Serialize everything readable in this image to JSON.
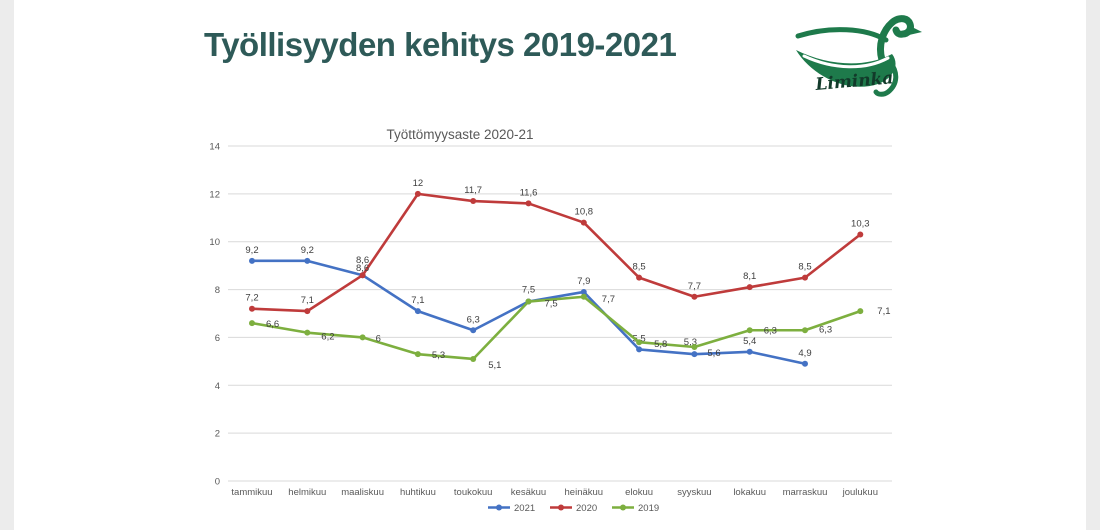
{
  "slide": {
    "title": "Työllisyyden kehitys 2019-2021",
    "title_color": "#2e5a58",
    "logo": {
      "text": "Liminka",
      "green": "#1e7a4b",
      "text_color": "#123a2a"
    }
  },
  "chart_data": {
    "type": "line",
    "title": "Työttömyysaste 2020-21",
    "categories": [
      "tammikuu",
      "helmikuu",
      "maaliskuu",
      "huhtikuu",
      "toukokuu",
      "kesäkuu",
      "heinäkuu",
      "elokuu",
      "syyskuu",
      "lokakuu",
      "marraskuu",
      "joulukuu"
    ],
    "series": [
      {
        "name": "2021",
        "color": "#4472c4",
        "values": [
          9.2,
          9.2,
          8.6,
          7.1,
          6.3,
          7.5,
          7.9,
          5.5,
          5.3,
          5.4,
          4.9,
          null
        ]
      },
      {
        "name": "2020",
        "color": "#bf3b3b",
        "values": [
          7.2,
          7.1,
          8.6,
          12,
          11.7,
          11.6,
          10.8,
          8.5,
          7.7,
          8.1,
          8.5,
          10.3
        ]
      },
      {
        "name": "2019",
        "color": "#7daf3f",
        "values": [
          6.6,
          6.2,
          6,
          5.3,
          5.1,
          7.5,
          7.7,
          5.8,
          5.6,
          6.3,
          6.3,
          7.1
        ]
      }
    ],
    "xlabel": "",
    "ylabel": "",
    "ylim": [
      0,
      14
    ],
    "yticks": [
      0,
      2,
      4,
      6,
      8,
      10,
      12,
      14
    ],
    "grid": true,
    "legend_position": "bottom",
    "decimal_separator": ",",
    "label_offsets": {
      "2021": [
        [
          0,
          -8
        ],
        [
          0,
          -8
        ],
        [
          0,
          -12
        ],
        [
          0,
          -8
        ],
        [
          0,
          -8
        ],
        [
          0,
          -9
        ],
        [
          0,
          -8
        ],
        [
          0,
          -8
        ],
        [
          -4,
          -9
        ],
        [
          0,
          -8
        ],
        [
          0,
          -8
        ],
        null
      ],
      "2020": [
        [
          0,
          -8
        ],
        [
          0,
          -8
        ],
        [
          0,
          -4
        ],
        [
          0,
          -8
        ],
        [
          0,
          -8
        ],
        [
          0,
          -8
        ],
        [
          0,
          -8
        ],
        [
          0,
          -8
        ],
        [
          0,
          -8
        ],
        [
          0,
          -8
        ],
        [
          0,
          -8
        ],
        [
          0,
          -8
        ]
      ],
      "2019": [
        [
          14,
          4
        ],
        [
          14,
          7
        ],
        [
          13,
          4
        ],
        [
          14,
          4
        ],
        [
          15,
          9
        ],
        [
          16,
          5
        ],
        [
          18,
          5
        ],
        [
          15,
          5
        ],
        [
          13,
          9
        ],
        [
          14,
          3
        ],
        [
          14,
          2
        ],
        [
          17,
          3
        ]
      ]
    }
  }
}
